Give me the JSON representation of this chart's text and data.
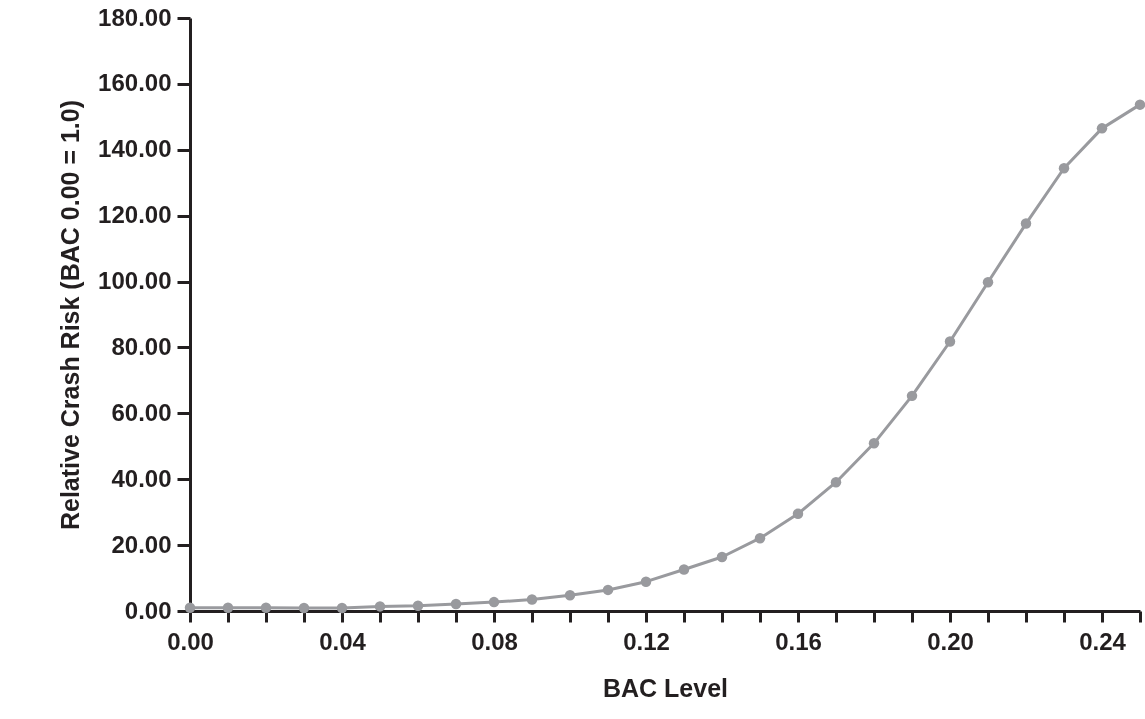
{
  "chart_data": {
    "type": "line",
    "xlabel": "BAC Level",
    "ylabel": "Relative Crash Risk (BAC 0.00 = 1.0)",
    "x": [
      0.0,
      0.01,
      0.02,
      0.03,
      0.04,
      0.05,
      0.06,
      0.07,
      0.08,
      0.09,
      0.1,
      0.11,
      0.12,
      0.13,
      0.14,
      0.15,
      0.16,
      0.17,
      0.18,
      0.19,
      0.2,
      0.21,
      0.22,
      0.23,
      0.24,
      0.25
    ],
    "series": [
      {
        "color": "#999a9e",
        "values": [
          1.0,
          1.0,
          1.0,
          0.9,
          0.9,
          1.4,
          1.6,
          2.1,
          2.7,
          3.5,
          4.8,
          6.4,
          8.9,
          12.6,
          16.4,
          22.1,
          29.5,
          39.1,
          50.9,
          65.3,
          81.8,
          99.8,
          117.6,
          134.4,
          146.5,
          153.7
        ]
      }
    ],
    "xlim": [
      0,
      0.25
    ],
    "xticks": [
      {
        "value": 0.0,
        "label": "0.00"
      },
      {
        "value": 0.01,
        "label": null
      },
      {
        "value": 0.02,
        "label": null
      },
      {
        "value": 0.03,
        "label": null
      },
      {
        "value": 0.04,
        "label": "0.04"
      },
      {
        "value": 0.05,
        "label": null
      },
      {
        "value": 0.06,
        "label": null
      },
      {
        "value": 0.07,
        "label": null
      },
      {
        "value": 0.08,
        "label": "0.08"
      },
      {
        "value": 0.09,
        "label": null
      },
      {
        "value": 0.1,
        "label": null
      },
      {
        "value": 0.11,
        "label": null
      },
      {
        "value": 0.12,
        "label": "0.12"
      },
      {
        "value": 0.13,
        "label": null
      },
      {
        "value": 0.14,
        "label": null
      },
      {
        "value": 0.15,
        "label": null
      },
      {
        "value": 0.16,
        "label": "0.16"
      },
      {
        "value": 0.17,
        "label": null
      },
      {
        "value": 0.18,
        "label": null
      },
      {
        "value": 0.19,
        "label": null
      },
      {
        "value": 0.2,
        "label": "0.20"
      },
      {
        "value": 0.21,
        "label": null
      },
      {
        "value": 0.22,
        "label": null
      },
      {
        "value": 0.23,
        "label": null
      },
      {
        "value": 0.24,
        "label": "0.24"
      },
      {
        "value": 0.25,
        "label": null
      }
    ],
    "ylim": [
      0,
      180
    ],
    "yticks": [
      {
        "value": 0,
        "label": "0.00"
      },
      {
        "value": 20,
        "label": "20.00"
      },
      {
        "value": 40,
        "label": "40.00"
      },
      {
        "value": 60,
        "label": "60.00"
      },
      {
        "value": 80,
        "label": "80.00"
      },
      {
        "value": 100,
        "label": "100.00"
      },
      {
        "value": 120,
        "label": "120.00"
      },
      {
        "value": 140,
        "label": "140.00"
      },
      {
        "value": 160,
        "label": "160.00"
      },
      {
        "value": 180,
        "label": "180.00"
      }
    ],
    "grid": false,
    "marker": "circle",
    "line_style": "solid"
  }
}
